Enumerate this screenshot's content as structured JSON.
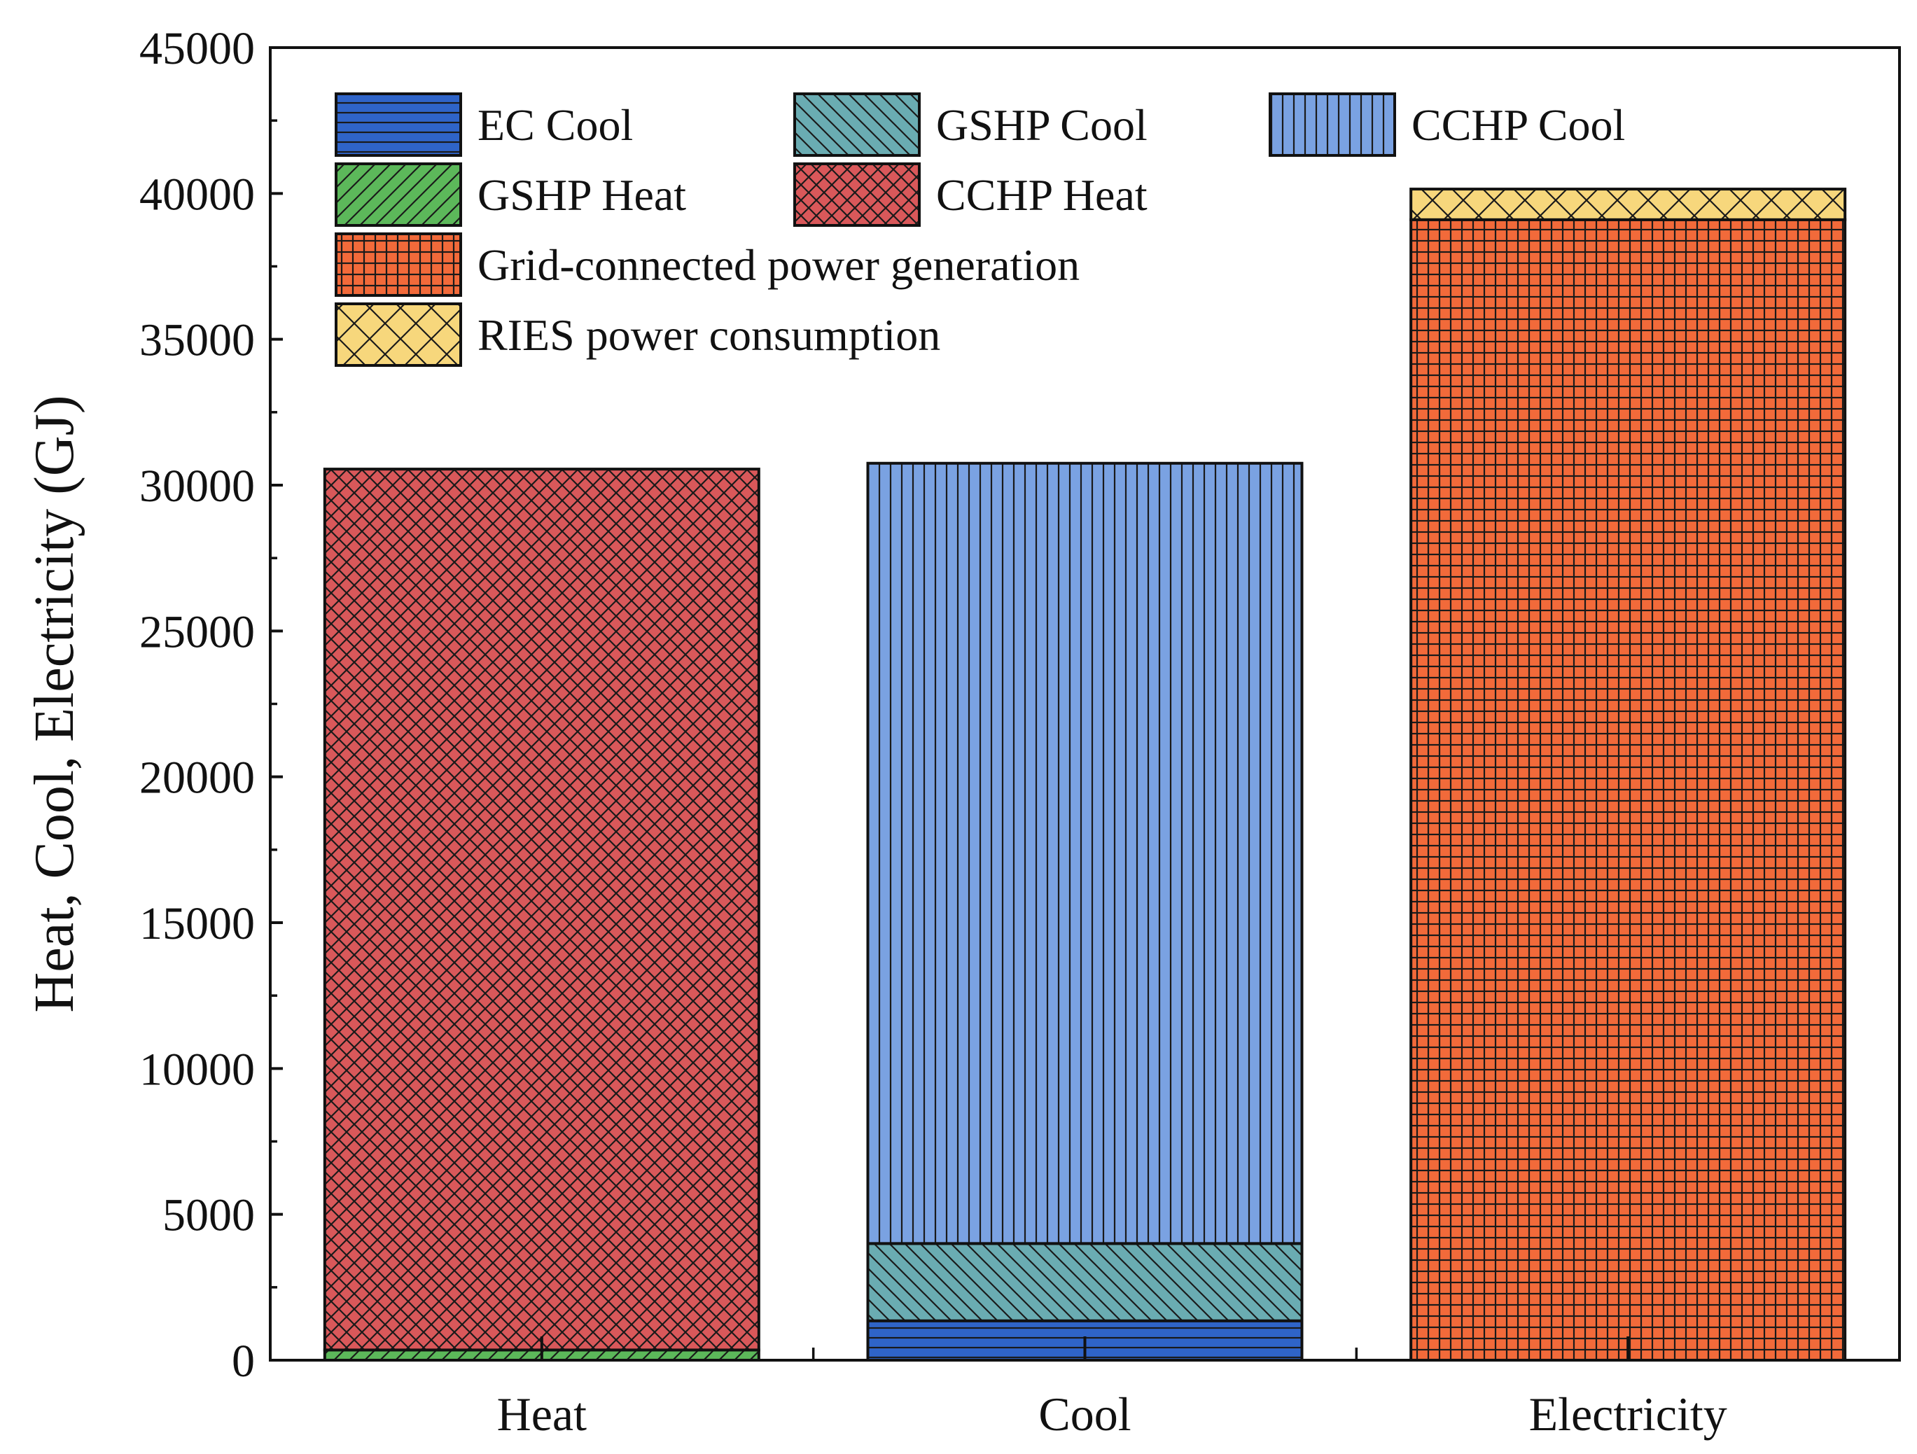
{
  "chart_data": {
    "type": "bar",
    "stacked": true,
    "title": "",
    "xlabel": "",
    "ylabel": "Heat, Cool, Electricity (GJ)",
    "ylim": [
      0,
      45000
    ],
    "yticks": [
      0,
      5000,
      10000,
      15000,
      20000,
      25000,
      30000,
      35000,
      40000,
      45000
    ],
    "categories": [
      "Heat",
      "Cool",
      "Electricity"
    ],
    "legend_position": "top-left",
    "grid": false,
    "series": [
      {
        "name": "EC Cool",
        "values": [
          0,
          1350,
          0
        ],
        "color": "#2f64c8",
        "pattern": "horizontal"
      },
      {
        "name": "GSHP  Cool",
        "values": [
          0,
          2650,
          0
        ],
        "color": "#6aacb2",
        "pattern": "back-diagonal"
      },
      {
        "name": "CCHP Cool",
        "values": [
          0,
          26750,
          0
        ],
        "color": "#7aa2e2",
        "pattern": "vertical"
      },
      {
        "name": "GSHP Heat",
        "values": [
          350,
          0,
          0
        ],
        "color": "#5cb85a",
        "pattern": "forward-diagonal"
      },
      {
        "name": "CCHP Heat",
        "values": [
          30200,
          0,
          0
        ],
        "color": "#d9585a",
        "pattern": "cross-diagonal"
      },
      {
        "name": "Grid-connected power generation",
        "values": [
          0,
          0,
          39100
        ],
        "color": "#f26a3a",
        "pattern": "grid"
      },
      {
        "name": "RIES power consumption",
        "values": [
          0,
          0,
          1050
        ],
        "color": "#f7d77c",
        "pattern": "wide-cross-diagonal"
      }
    ]
  }
}
